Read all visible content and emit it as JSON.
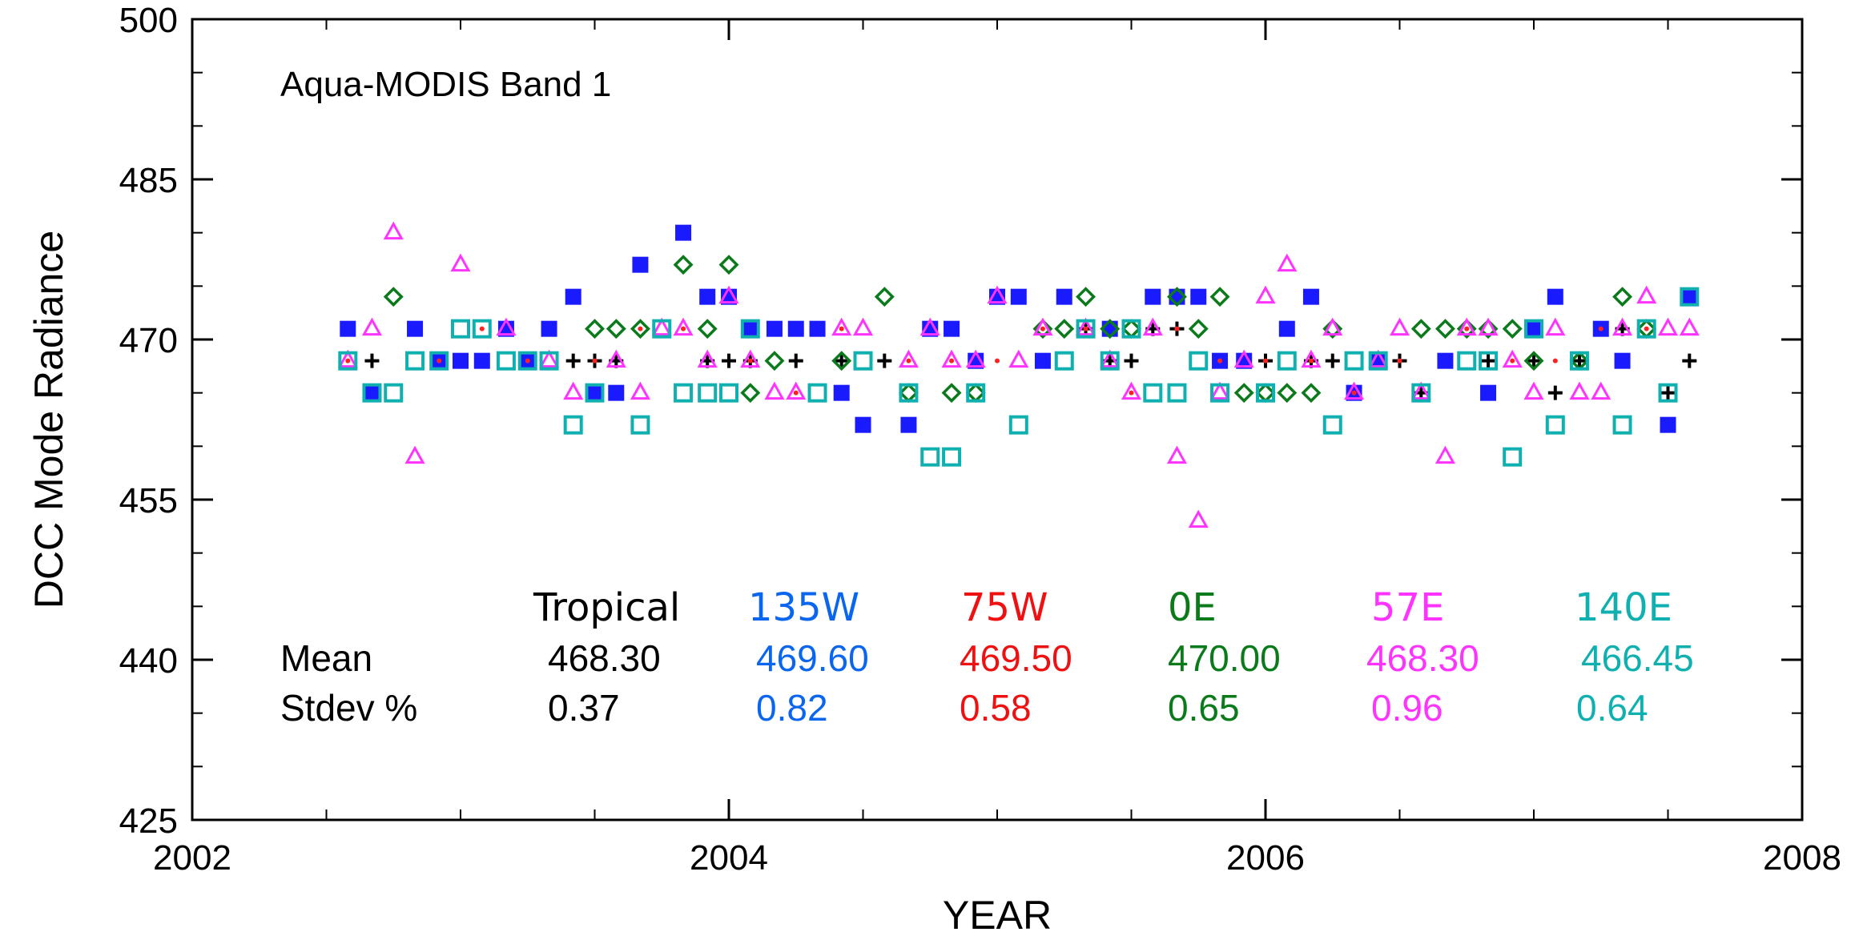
{
  "chart_data": {
    "type": "scatter",
    "title": "Aqua-MODIS Band 1",
    "xlabel": "YEAR",
    "ylabel": "DCC Mode Radiance",
    "xlim": [
      2002,
      2008
    ],
    "ylim": [
      425,
      500
    ],
    "x_ticks": [
      "2002",
      "2004",
      "2006",
      "2008"
    ],
    "y_ticks": [
      "425",
      "440",
      "455",
      "470",
      "485",
      "500"
    ],
    "grid": false,
    "series": [
      {
        "name": "Tropical",
        "color": "#000000",
        "marker": "plus",
        "points": [
          [
            2002.58,
            471
          ],
          [
            2002.67,
            468
          ],
          [
            2002.83,
            471
          ],
          [
            2003.42,
            468
          ],
          [
            2003.5,
            468
          ],
          [
            2003.58,
            468
          ],
          [
            2003.92,
            468
          ],
          [
            2004.0,
            468
          ],
          [
            2004.08,
            468
          ],
          [
            2004.25,
            468
          ],
          [
            2004.42,
            468
          ],
          [
            2004.58,
            468
          ],
          [
            2004.92,
            468
          ],
          [
            2005.17,
            468
          ],
          [
            2005.33,
            471
          ],
          [
            2005.42,
            468
          ],
          [
            2005.5,
            468
          ],
          [
            2005.58,
            471
          ],
          [
            2005.67,
            471
          ],
          [
            2005.83,
            468
          ],
          [
            2006.0,
            468
          ],
          [
            2006.17,
            468
          ],
          [
            2006.25,
            468
          ],
          [
            2006.5,
            468
          ],
          [
            2006.58,
            465
          ],
          [
            2006.83,
            468
          ],
          [
            2007.0,
            468
          ],
          [
            2007.08,
            465
          ],
          [
            2007.17,
            468
          ],
          [
            2007.33,
            471
          ],
          [
            2007.5,
            465
          ],
          [
            2007.58,
            468
          ]
        ]
      },
      {
        "name": "135W",
        "color": "#1a1aff",
        "marker": "filled-square",
        "points": [
          [
            2002.58,
            471
          ],
          [
            2002.67,
            465
          ],
          [
            2002.83,
            471
          ],
          [
            2002.92,
            468
          ],
          [
            2003.0,
            468
          ],
          [
            2003.08,
            468
          ],
          [
            2003.17,
            471
          ],
          [
            2003.25,
            468
          ],
          [
            2003.33,
            471
          ],
          [
            2003.42,
            474
          ],
          [
            2003.5,
            465
          ],
          [
            2003.58,
            465
          ],
          [
            2003.67,
            477
          ],
          [
            2003.83,
            480
          ],
          [
            2003.92,
            474
          ],
          [
            2004.0,
            474
          ],
          [
            2004.08,
            471
          ],
          [
            2004.17,
            471
          ],
          [
            2004.25,
            471
          ],
          [
            2004.33,
            471
          ],
          [
            2004.42,
            465
          ],
          [
            2004.5,
            462
          ],
          [
            2004.67,
            462
          ],
          [
            2004.75,
            471
          ],
          [
            2004.83,
            471
          ],
          [
            2004.92,
            468
          ],
          [
            2005.0,
            474
          ],
          [
            2005.08,
            474
          ],
          [
            2005.17,
            468
          ],
          [
            2005.25,
            474
          ],
          [
            2005.42,
            471
          ],
          [
            2005.58,
            474
          ],
          [
            2005.67,
            474
          ],
          [
            2005.75,
            474
          ],
          [
            2005.83,
            468
          ],
          [
            2005.92,
            468
          ],
          [
            2006.08,
            471
          ],
          [
            2006.17,
            474
          ],
          [
            2006.33,
            465
          ],
          [
            2006.42,
            468
          ],
          [
            2006.67,
            468
          ],
          [
            2006.83,
            465
          ],
          [
            2007.0,
            471
          ],
          [
            2007.08,
            474
          ],
          [
            2007.25,
            471
          ],
          [
            2007.33,
            468
          ],
          [
            2007.5,
            462
          ],
          [
            2007.58,
            474
          ]
        ]
      },
      {
        "name": "75W",
        "color": "#ff2020",
        "marker": "dot",
        "points": [
          [
            2002.58,
            468
          ],
          [
            2002.92,
            468
          ],
          [
            2003.08,
            471
          ],
          [
            2003.25,
            468
          ],
          [
            2003.5,
            468
          ],
          [
            2003.67,
            471
          ],
          [
            2003.83,
            471
          ],
          [
            2004.08,
            468
          ],
          [
            2004.25,
            465
          ],
          [
            2004.42,
            471
          ],
          [
            2004.67,
            468
          ],
          [
            2004.83,
            468
          ],
          [
            2005.0,
            468
          ],
          [
            2005.17,
            471
          ],
          [
            2005.33,
            471
          ],
          [
            2005.5,
            465
          ],
          [
            2005.67,
            471
          ],
          [
            2005.83,
            468
          ],
          [
            2006.0,
            468
          ],
          [
            2006.17,
            468
          ],
          [
            2006.33,
            465
          ],
          [
            2006.5,
            468
          ],
          [
            2006.75,
            471
          ],
          [
            2006.92,
            468
          ],
          [
            2007.08,
            468
          ],
          [
            2007.25,
            471
          ],
          [
            2007.42,
            471
          ]
        ]
      },
      {
        "name": "0E",
        "color": "#0a7a1a",
        "marker": "diamond",
        "points": [
          [
            2002.75,
            474
          ],
          [
            2003.5,
            471
          ],
          [
            2003.58,
            471
          ],
          [
            2003.67,
            471
          ],
          [
            2003.83,
            477
          ],
          [
            2003.92,
            471
          ],
          [
            2004.0,
            477
          ],
          [
            2004.08,
            465
          ],
          [
            2004.17,
            468
          ],
          [
            2004.42,
            468
          ],
          [
            2004.58,
            474
          ],
          [
            2004.67,
            465
          ],
          [
            2004.83,
            465
          ],
          [
            2004.92,
            465
          ],
          [
            2005.17,
            471
          ],
          [
            2005.25,
            471
          ],
          [
            2005.33,
            474
          ],
          [
            2005.42,
            471
          ],
          [
            2005.5,
            471
          ],
          [
            2005.67,
            474
          ],
          [
            2005.75,
            471
          ],
          [
            2005.83,
            474
          ],
          [
            2005.92,
            465
          ],
          [
            2006.0,
            465
          ],
          [
            2006.08,
            465
          ],
          [
            2006.17,
            465
          ],
          [
            2006.25,
            471
          ],
          [
            2006.58,
            471
          ],
          [
            2006.67,
            471
          ],
          [
            2006.75,
            471
          ],
          [
            2006.83,
            471
          ],
          [
            2006.92,
            471
          ],
          [
            2007.0,
            468
          ],
          [
            2007.17,
            468
          ],
          [
            2007.33,
            474
          ],
          [
            2007.42,
            471
          ]
        ]
      },
      {
        "name": "57E",
        "color": "#ff33ff",
        "marker": "triangle",
        "points": [
          [
            2002.58,
            468
          ],
          [
            2002.67,
            471
          ],
          [
            2002.75,
            480
          ],
          [
            2002.83,
            459
          ],
          [
            2003.0,
            477
          ],
          [
            2003.17,
            471
          ],
          [
            2003.33,
            468
          ],
          [
            2003.42,
            465
          ],
          [
            2003.58,
            468
          ],
          [
            2003.67,
            465
          ],
          [
            2003.75,
            471
          ],
          [
            2003.83,
            471
          ],
          [
            2003.92,
            468
          ],
          [
            2004.0,
            474
          ],
          [
            2004.08,
            468
          ],
          [
            2004.17,
            465
          ],
          [
            2004.25,
            465
          ],
          [
            2004.42,
            471
          ],
          [
            2004.5,
            471
          ],
          [
            2004.67,
            468
          ],
          [
            2004.75,
            471
          ],
          [
            2004.83,
            468
          ],
          [
            2004.92,
            468
          ],
          [
            2005.0,
            474
          ],
          [
            2005.08,
            468
          ],
          [
            2005.17,
            471
          ],
          [
            2005.33,
            471
          ],
          [
            2005.42,
            468
          ],
          [
            2005.5,
            465
          ],
          [
            2005.58,
            471
          ],
          [
            2005.67,
            459
          ],
          [
            2005.75,
            453
          ],
          [
            2005.83,
            465
          ],
          [
            2005.92,
            468
          ],
          [
            2006.0,
            474
          ],
          [
            2006.08,
            477
          ],
          [
            2006.17,
            468
          ],
          [
            2006.25,
            471
          ],
          [
            2006.33,
            465
          ],
          [
            2006.42,
            468
          ],
          [
            2006.5,
            471
          ],
          [
            2006.58,
            465
          ],
          [
            2006.67,
            459
          ],
          [
            2006.75,
            471
          ],
          [
            2006.83,
            471
          ],
          [
            2006.92,
            468
          ],
          [
            2007.0,
            465
          ],
          [
            2007.08,
            471
          ],
          [
            2007.17,
            465
          ],
          [
            2007.25,
            465
          ],
          [
            2007.33,
            471
          ],
          [
            2007.42,
            474
          ],
          [
            2007.5,
            471
          ],
          [
            2007.58,
            471
          ]
        ]
      },
      {
        "name": "140E",
        "color": "#10b0b0",
        "marker": "open-square",
        "points": [
          [
            2002.58,
            468
          ],
          [
            2002.67,
            465
          ],
          [
            2002.75,
            465
          ],
          [
            2002.83,
            468
          ],
          [
            2002.92,
            468
          ],
          [
            2003.0,
            471
          ],
          [
            2003.08,
            471
          ],
          [
            2003.17,
            468
          ],
          [
            2003.25,
            468
          ],
          [
            2003.33,
            468
          ],
          [
            2003.42,
            462
          ],
          [
            2003.5,
            465
          ],
          [
            2003.67,
            462
          ],
          [
            2003.75,
            471
          ],
          [
            2003.83,
            465
          ],
          [
            2003.92,
            465
          ],
          [
            2004.0,
            465
          ],
          [
            2004.08,
            471
          ],
          [
            2004.33,
            465
          ],
          [
            2004.5,
            468
          ],
          [
            2004.67,
            465
          ],
          [
            2004.75,
            459
          ],
          [
            2004.83,
            459
          ],
          [
            2004.92,
            465
          ],
          [
            2005.08,
            462
          ],
          [
            2005.25,
            468
          ],
          [
            2005.33,
            471
          ],
          [
            2005.42,
            468
          ],
          [
            2005.5,
            471
          ],
          [
            2005.58,
            465
          ],
          [
            2005.67,
            465
          ],
          [
            2005.75,
            468
          ],
          [
            2005.83,
            465
          ],
          [
            2006.0,
            465
          ],
          [
            2006.08,
            468
          ],
          [
            2006.25,
            462
          ],
          [
            2006.33,
            468
          ],
          [
            2006.42,
            468
          ],
          [
            2006.58,
            465
          ],
          [
            2006.75,
            468
          ],
          [
            2006.83,
            468
          ],
          [
            2006.92,
            459
          ],
          [
            2007.0,
            471
          ],
          [
            2007.08,
            462
          ],
          [
            2007.17,
            468
          ],
          [
            2007.33,
            462
          ],
          [
            2007.42,
            471
          ],
          [
            2007.5,
            465
          ],
          [
            2007.58,
            474
          ]
        ]
      }
    ],
    "stats_table": {
      "row_labels": [
        "Mean",
        "Stdev %"
      ],
      "columns": [
        {
          "name": "Tropical",
          "color": "#000000",
          "mean": "468.30",
          "stdev": "0.37"
        },
        {
          "name": "135W",
          "color": "#0a66ee",
          "mean": "469.60",
          "stdev": "0.82"
        },
        {
          "name": "75W",
          "color": "#ee1111",
          "mean": "469.50",
          "stdev": "0.58"
        },
        {
          "name": "0E",
          "color": "#0a7a1a",
          "mean": "470.00",
          "stdev": "0.65"
        },
        {
          "name": "57E",
          "color": "#ff33ff",
          "mean": "468.30",
          "stdev": "0.96"
        },
        {
          "name": "140E",
          "color": "#10b0b0",
          "mean": "466.45",
          "stdev": "0.64"
        }
      ]
    }
  }
}
